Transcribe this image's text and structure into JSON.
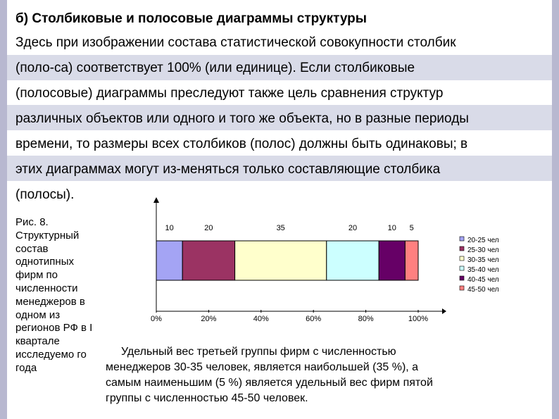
{
  "slide": {
    "title": "б) Столбиковые и полосовые диаграммы структуры",
    "intro_lines": [
      "Здесь при изображении состава статистической совокупности столбик",
      "(поло-са) соответствует 100% (или единице). Если столбиковые",
      "(полосовые) диаграммы преследуют также цель сравнения структур",
      "различных объектов или одного и того же объекта, но в разные периоды",
      "времени, то размеры всех столбиков (полос) должны быть одинаковы; в",
      "этих диаграммах могут из-меняться только составляющие столбика",
      "(полосы)."
    ],
    "caption": "Рис. 8. Структурный состав однотипных фирм по численности менеджеров в одном из регионов РФ в I квартале исследуемо го года",
    "note_lines": [
      "Удельный вес третьей группы фирм с численностью",
      "менеджеров 30-35 человек, является наибольшей (35 %), а",
      "самым наименьшим (5 %) является удельный вес фирм пятой",
      "группы с численностью 45-50 человек."
    ]
  },
  "chart_data": {
    "type": "bar",
    "orientation": "horizontal",
    "stacked": true,
    "categories": [
      ""
    ],
    "series": [
      {
        "name": "20-25 чел",
        "values": [
          10
        ],
        "color": "#a4a4f4"
      },
      {
        "name": "25-30 чел",
        "values": [
          20
        ],
        "color": "#9b3363"
      },
      {
        "name": "30-35 чел",
        "values": [
          35
        ],
        "color": "#ffffcc"
      },
      {
        "name": "35-40 чел",
        "values": [
          20
        ],
        "color": "#ccffff"
      },
      {
        "name": "40-45 чел",
        "values": [
          10
        ],
        "color": "#660066"
      },
      {
        "name": "45-50 чел",
        "values": [
          5
        ],
        "color": "#ff8080"
      }
    ],
    "data_labels": [
      "10",
      "20",
      "35",
      "20",
      "10",
      "5"
    ],
    "x_ticks": [
      "0%",
      "20%",
      "40%",
      "60%",
      "80%",
      "100%"
    ],
    "xlim": [
      0,
      100
    ],
    "legend_position": "right",
    "grid": false
  }
}
